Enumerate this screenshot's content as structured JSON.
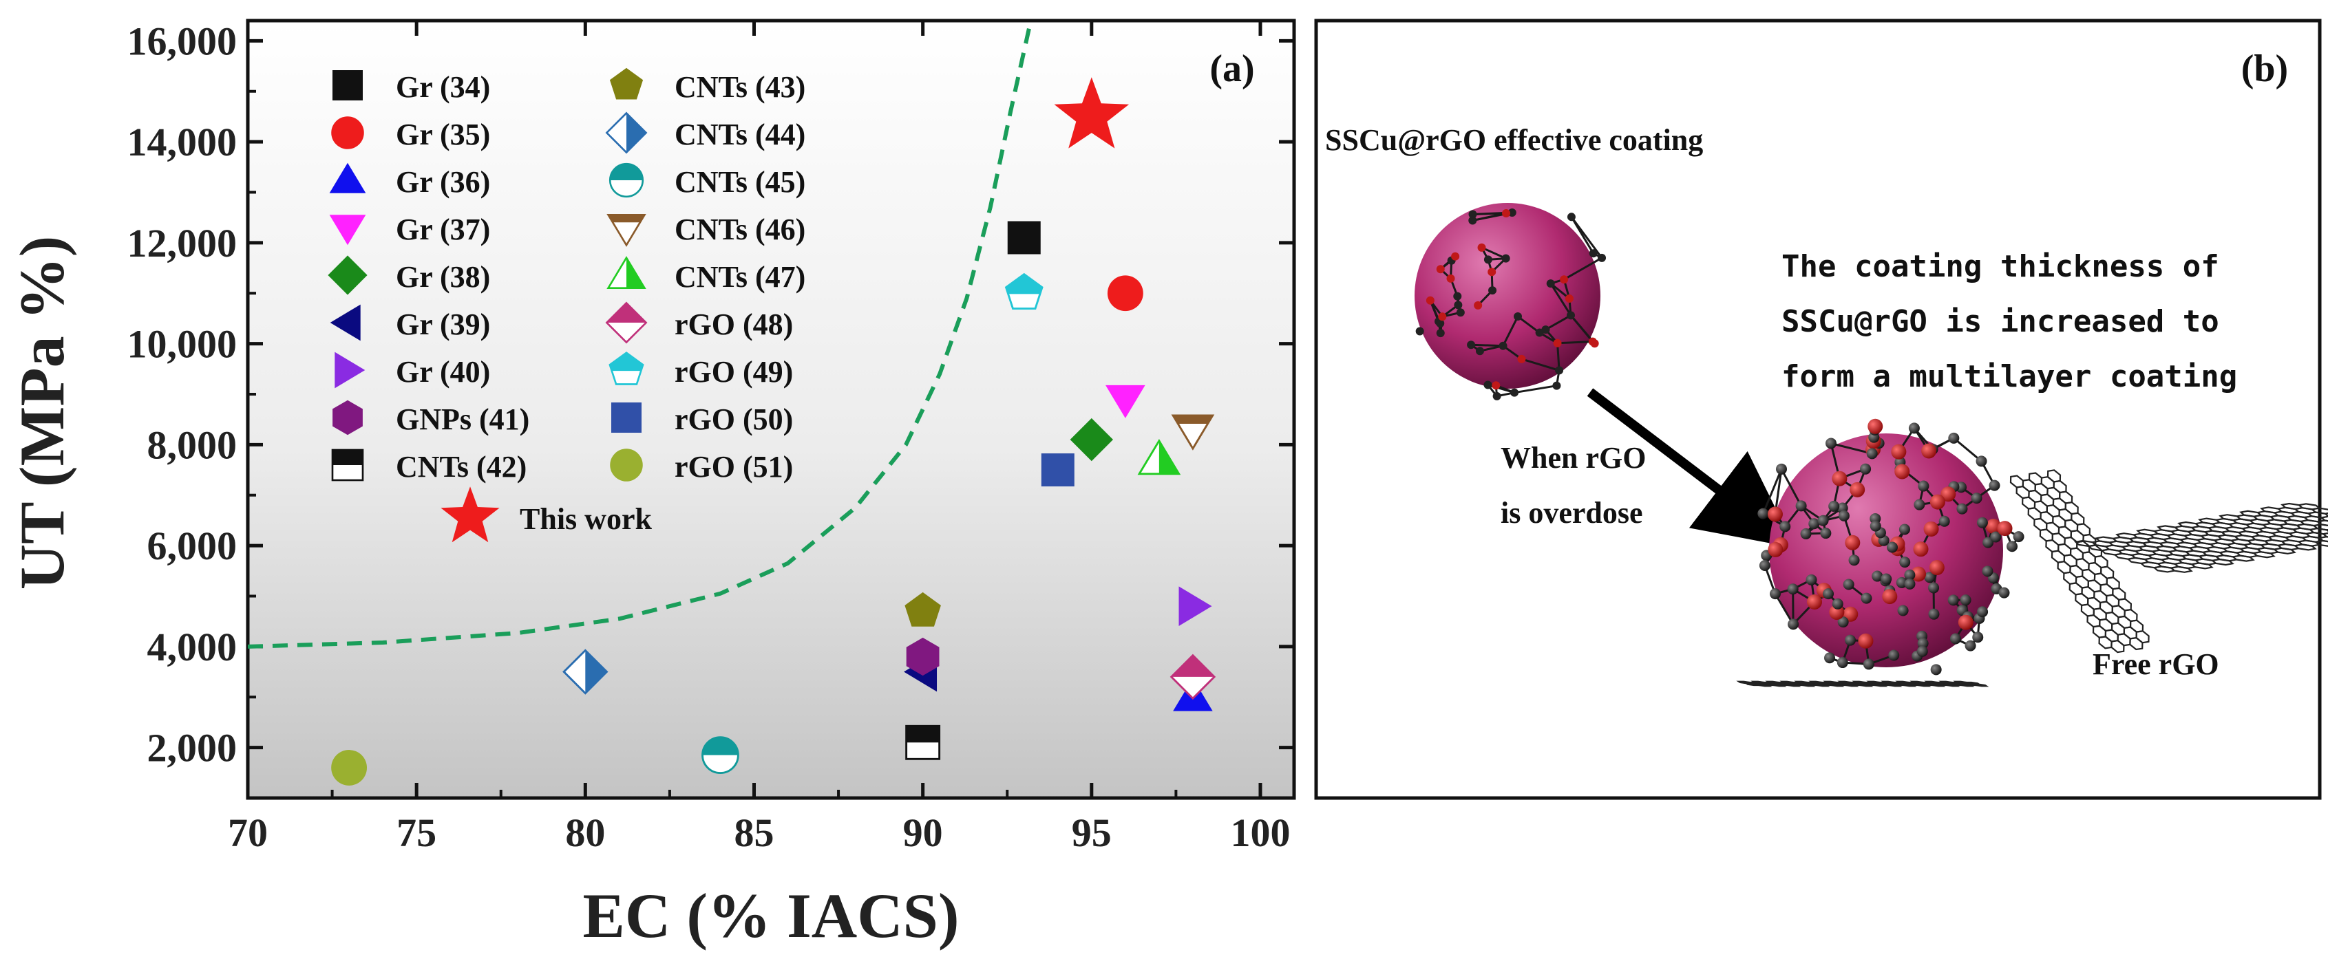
{
  "chart_data": {
    "type": "scatter",
    "panel_label": "(a)",
    "xlabel": "EC (% IACS)",
    "ylabel": "UT (MPa %)",
    "xlim": [
      70,
      101
    ],
    "ylim": [
      1000,
      16400
    ],
    "xticks": [
      70,
      75,
      80,
      85,
      90,
      95,
      100
    ],
    "yticks": [
      2000,
      4000,
      6000,
      8000,
      10000,
      12000,
      14000,
      16000
    ],
    "ytick_labels": [
      "2,000",
      "4,000",
      "6,000",
      "8,000",
      "10,000",
      "12,000",
      "14,000",
      "16,000"
    ],
    "trend_curve": {
      "style": "dashed",
      "color": "#1a9e5a",
      "x": [
        70,
        74,
        78,
        81,
        84,
        86,
        88,
        89.5,
        90.5,
        91.3,
        92,
        92.6,
        93.2
      ],
      "y": [
        4000,
        4080,
        4270,
        4550,
        5050,
        5650,
        6750,
        8000,
        9400,
        10900,
        12700,
        14600,
        16400
      ]
    },
    "series": [
      {
        "name": "Gr (34)",
        "marker": "square",
        "color": "#111111",
        "x": [
          93
        ],
        "y": [
          12100
        ]
      },
      {
        "name": "Gr (35)",
        "marker": "circle",
        "color": "#ee1c1c",
        "x": [
          96
        ],
        "y": [
          11000
        ]
      },
      {
        "name": "Gr (36)",
        "marker": "triangle-up",
        "color": "#1010ee",
        "x": [
          98
        ],
        "y": [
          3000
        ]
      },
      {
        "name": "Gr (37)",
        "marker": "triangle-down",
        "color": "#ff22ff",
        "x": [
          96
        ],
        "y": [
          8900
        ]
      },
      {
        "name": "Gr (38)",
        "marker": "diamond",
        "color": "#1a8a1a",
        "x": [
          95
        ],
        "y": [
          8100
        ]
      },
      {
        "name": "Gr (39)",
        "marker": "triangle-left",
        "color": "#0a0a80",
        "x": [
          90
        ],
        "y": [
          3500
        ]
      },
      {
        "name": "Gr (40)",
        "marker": "triangle-right",
        "color": "#8a2be2",
        "x": [
          98
        ],
        "y": [
          4800
        ]
      },
      {
        "name": "GNPs (41)",
        "marker": "hexagon",
        "color": "#801880",
        "x": [
          90
        ],
        "y": [
          3800
        ]
      },
      {
        "name": "CNTs (42)",
        "marker": "square-half",
        "color": "#111111",
        "x": [
          90
        ],
        "y": [
          2100
        ]
      },
      {
        "name": "CNTs (43)",
        "marker": "pentagon",
        "color": "#808010",
        "x": [
          90
        ],
        "y": [
          4700
        ]
      },
      {
        "name": "CNTs (44)",
        "marker": "diamond-half",
        "color": "#2a6db0",
        "x": [
          80
        ],
        "y": [
          3500
        ]
      },
      {
        "name": "CNTs (45)",
        "marker": "circle-half",
        "color": "#119a9a",
        "x": [
          84
        ],
        "y": [
          1850
        ]
      },
      {
        "name": "CNTs (46)",
        "marker": "triangle-down-open",
        "color": "#8a5a2a",
        "x": [
          98
        ],
        "y": [
          8300
        ]
      },
      {
        "name": "CNTs (47)",
        "marker": "triangle-half",
        "color": "#22cc22",
        "x": [
          97
        ],
        "y": [
          7700
        ]
      },
      {
        "name": "rGO (48)",
        "marker": "diamond-half-top",
        "color": "#c0307a",
        "x": [
          98
        ],
        "y": [
          3400
        ]
      },
      {
        "name": "rGO (49)",
        "marker": "pentagon-half",
        "color": "#22c6d6",
        "x": [
          93
        ],
        "y": [
          11000
        ]
      },
      {
        "name": "rGO (50)",
        "marker": "square",
        "color": "#3050a8",
        "x": [
          94
        ],
        "y": [
          7500
        ]
      },
      {
        "name": "rGO (51)",
        "marker": "circle",
        "color": "#9ab030",
        "x": [
          73
        ],
        "y": [
          1600
        ]
      },
      {
        "name": "This work",
        "marker": "star",
        "color": "#ee1c1c",
        "x": [
          95
        ],
        "y": [
          14500
        ]
      }
    ]
  },
  "panel_b": {
    "label": "(b)",
    "caption_effective": "SSCu@rGO effective coating",
    "caption_thickness_lines": [
      "The coating thickness of",
      "SSCu@rGO is increased to",
      "form a multilayer coating"
    ],
    "caption_overdose_lines": [
      "When rGO",
      "is overdose"
    ],
    "caption_free": "Free rGO",
    "sphere_color": "#b02a70",
    "atom_color_dark": "#222222",
    "atom_color_red": "#c01818"
  }
}
